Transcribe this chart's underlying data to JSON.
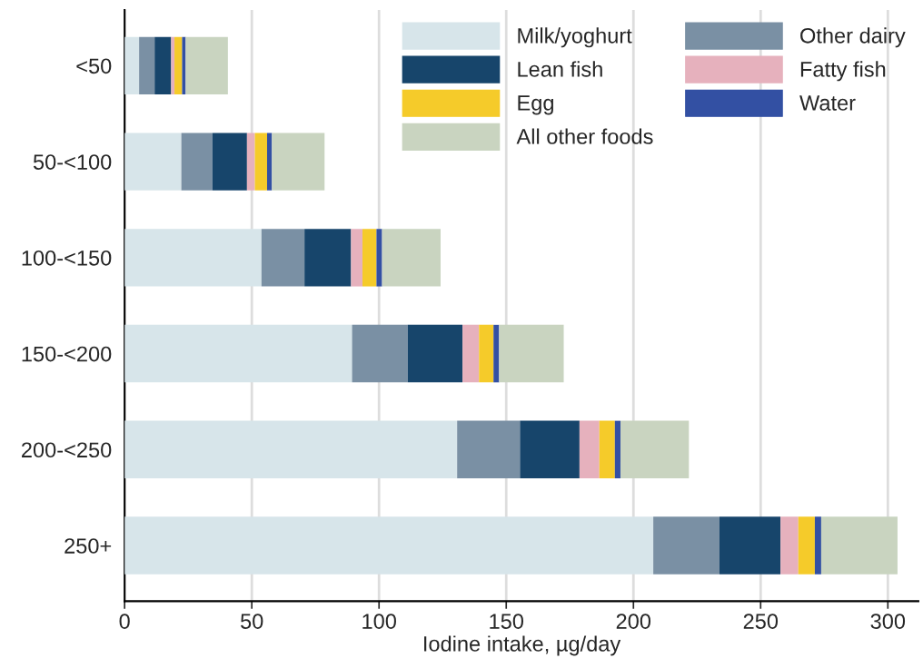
{
  "chart_data": {
    "type": "bar",
    "orientation": "horizontal",
    "stacked": true,
    "xlabel": "Iodine intake, µg/day",
    "categories": [
      "<50",
      "50-<100",
      "100-<150",
      "150-<200",
      "200-<250",
      "250+"
    ],
    "series": [
      {
        "name": "Milk/yoghurt",
        "color": "#d7e5ea",
        "values": [
          5.7,
          22.3,
          53.8,
          89.4,
          130.7,
          207.8
        ]
      },
      {
        "name": "Other dairy",
        "color": "#7a90a4",
        "values": [
          6.1,
          12.2,
          16.9,
          21.9,
          24.7,
          26.0
        ]
      },
      {
        "name": "Lean fish",
        "color": "#17456b",
        "values": [
          6.5,
          13.6,
          18.3,
          21.5,
          23.4,
          24.0
        ]
      },
      {
        "name": "Fatty fish",
        "color": "#e6b1bd",
        "values": [
          1.3,
          3.1,
          4.5,
          6.5,
          7.8,
          7.0
        ]
      },
      {
        "name": "Egg",
        "color": "#f5cb2a",
        "values": [
          3.0,
          4.8,
          5.5,
          5.7,
          6.1,
          6.5
        ]
      },
      {
        "name": "Water",
        "color": "#3350a3",
        "values": [
          1.4,
          1.9,
          2.2,
          2.2,
          2.2,
          2.5
        ]
      },
      {
        "name": "All other foods",
        "color": "#c9d4c0",
        "values": [
          16.6,
          20.7,
          23.0,
          25.4,
          26.9,
          30.0
        ]
      }
    ],
    "xlim": [
      0,
      312
    ],
    "xticks": [
      0,
      50,
      100,
      150,
      200,
      250,
      300
    ],
    "grid": "x",
    "legend": "top right"
  }
}
